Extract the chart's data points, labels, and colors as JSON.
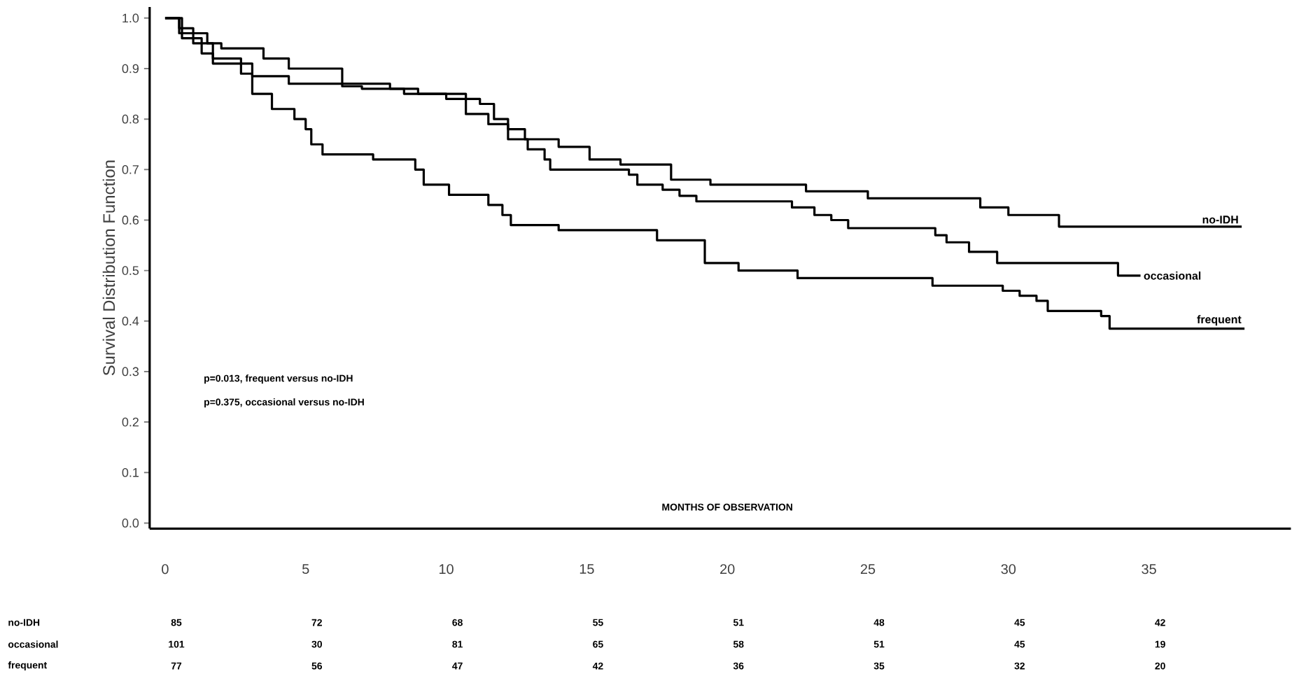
{
  "chart_data": {
    "type": "step",
    "ylabel": "Survival Distribution Function",
    "xlabel": "MONTHS OF OBSERVATION",
    "xlim": [
      -0.55,
      40.05
    ],
    "ylim": [
      -0.011,
      1.022
    ],
    "xticks": [
      0,
      5,
      10,
      15,
      20,
      25,
      30,
      35
    ],
    "yticks": [
      {
        "value": 0,
        "label": "0.0"
      },
      {
        "value": 0.1,
        "label": "0.1"
      },
      {
        "value": 0.2,
        "label": "0.2"
      },
      {
        "value": 0.3,
        "label": "0.3"
      },
      {
        "value": 0.4,
        "label": "0.4"
      },
      {
        "value": 0.5,
        "label": "0.5"
      },
      {
        "value": 0.6,
        "label": "0.6"
      },
      {
        "value": 0.7,
        "label": "0.7"
      },
      {
        "value": 0.8,
        "label": "0.8"
      },
      {
        "value": 0.9,
        "label": "0.9"
      },
      {
        "value": 1,
        "label": "1.0"
      }
    ],
    "grid": false,
    "legend": false,
    "marker": "none",
    "line_style": "solid",
    "series": [
      {
        "name": "no-IDH",
        "color": "#000000",
        "x": [
          0,
          0.5,
          1.0,
          1.5,
          2.0,
          3.0,
          3.5,
          4.4,
          6.3,
          7.0,
          8.0,
          9.0,
          10.0,
          11.2,
          11.7,
          12.2,
          12.8,
          14.0,
          15.1,
          16.2,
          18.0,
          19.4,
          22.8,
          25.0,
          29.0,
          30.0,
          31.8,
          38.3
        ],
        "values": [
          1.0,
          0.98,
          0.97,
          0.95,
          0.94,
          0.94,
          0.92,
          0.9,
          0.87,
          0.87,
          0.86,
          0.85,
          0.84,
          0.83,
          0.8,
          0.78,
          0.76,
          0.745,
          0.72,
          0.71,
          0.68,
          0.67,
          0.657,
          0.643,
          0.625,
          0.61,
          0.587,
          0.587
        ]
      },
      {
        "name": "occasional",
        "color": "#000000",
        "x": [
          0,
          0.6,
          1.3,
          1.7,
          3.1,
          4.4,
          6.3,
          7.0,
          8.5,
          10.7,
          11.5,
          12.2,
          12.9,
          13.5,
          13.7,
          16.5,
          16.8,
          17.7,
          18.3,
          18.9,
          22.3,
          23.1,
          23.7,
          24.3,
          27.4,
          27.8,
          28.6,
          29.6,
          33.9,
          34.7
        ],
        "values": [
          1.0,
          0.96,
          0.93,
          0.91,
          0.885,
          0.87,
          0.865,
          0.86,
          0.85,
          0.81,
          0.79,
          0.76,
          0.74,
          0.72,
          0.7,
          0.69,
          0.67,
          0.66,
          0.648,
          0.637,
          0.625,
          0.61,
          0.6,
          0.584,
          0.57,
          0.556,
          0.537,
          0.515,
          0.49,
          0.49
        ]
      },
      {
        "name": "frequent",
        "color": "#000000",
        "x": [
          0,
          0.5,
          1.0,
          1.7,
          2.7,
          3.1,
          3.8,
          4.6,
          5.0,
          5.2,
          5.6,
          7.4,
          8.9,
          9.2,
          10.1,
          11.5,
          12.0,
          12.3,
          14.0,
          17.5,
          19.2,
          20.4,
          22.5,
          27.3,
          29.8,
          30.4,
          31.0,
          31.4,
          33.3,
          33.6,
          38.4
        ],
        "values": [
          1.0,
          0.97,
          0.95,
          0.92,
          0.89,
          0.85,
          0.82,
          0.8,
          0.78,
          0.75,
          0.73,
          0.72,
          0.7,
          0.67,
          0.65,
          0.63,
          0.61,
          0.59,
          0.58,
          0.56,
          0.515,
          0.5,
          0.485,
          0.47,
          0.46,
          0.45,
          0.44,
          0.42,
          0.41,
          0.385,
          0.385
        ]
      }
    ],
    "annotations": [
      "p=0.013, frequent versus  no-IDH",
      "p=0.375, occasional versus  no-IDH",
      "no-IDH",
      "85",
      "72",
      "68",
      "55",
      "51",
      "48",
      "45",
      "42",
      "occasional",
      "101",
      "30",
      "81",
      "65",
      "58",
      "51",
      "45",
      "19",
      "frequent",
      "77",
      "56",
      "47",
      "42",
      "36",
      "35",
      "32",
      "20"
    ]
  }
}
